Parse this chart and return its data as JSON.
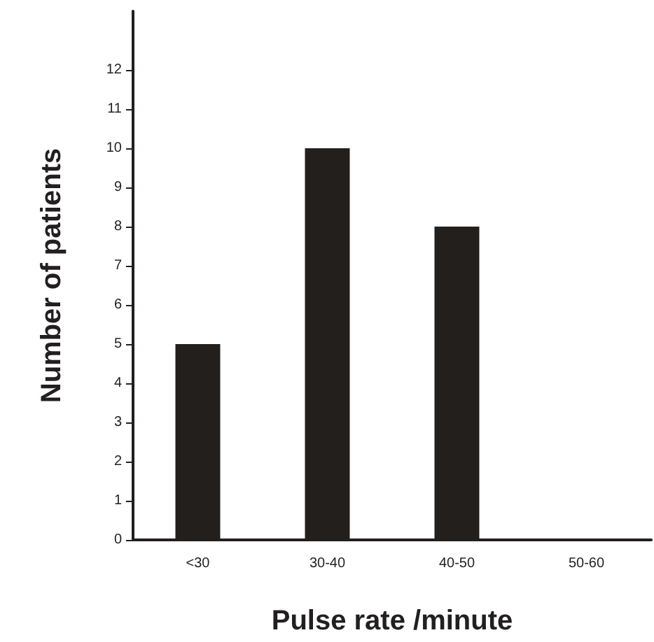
{
  "chart_data": {
    "type": "bar",
    "xlabel": "Pulse rate /minute",
    "ylabel": "Number of patients",
    "categories": [
      "<30",
      "30-40",
      "40-50",
      "50-60"
    ],
    "values": [
      5,
      10,
      8,
      0
    ],
    "color": "#231f1c",
    "ylim": [
      0,
      13.5
    ],
    "yticks": [
      0,
      1,
      2,
      3,
      4,
      5,
      6,
      7,
      8,
      9,
      10,
      11,
      12
    ],
    "grid": false
  }
}
